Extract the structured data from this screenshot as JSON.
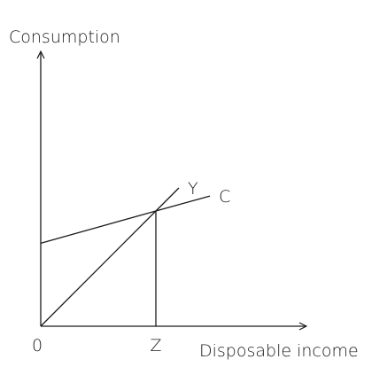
{
  "chart_data": {
    "type": "line",
    "title": "",
    "ylabel": "Consumption",
    "xlabel": "Disposable income",
    "origin_label": "0",
    "x_ticks": [
      {
        "value": 1,
        "label": "Z"
      }
    ],
    "xlim": [
      0,
      1.27
    ],
    "ylim": [
      0,
      1.29
    ],
    "grid": false,
    "legend": "none",
    "series": [
      {
        "name": "Y",
        "points": [
          [
            0,
            0
          ],
          [
            1.0,
            1.0
          ],
          [
            1.2,
            1.2
          ]
        ]
      },
      {
        "name": "C",
        "points": [
          [
            0,
            0.72
          ],
          [
            1.0,
            1.0
          ],
          [
            1.47,
            1.13
          ]
        ]
      }
    ],
    "marker_lines": [
      {
        "type": "vertical",
        "x": 1.0,
        "from_y": 0,
        "to_y": 1.0
      }
    ]
  }
}
